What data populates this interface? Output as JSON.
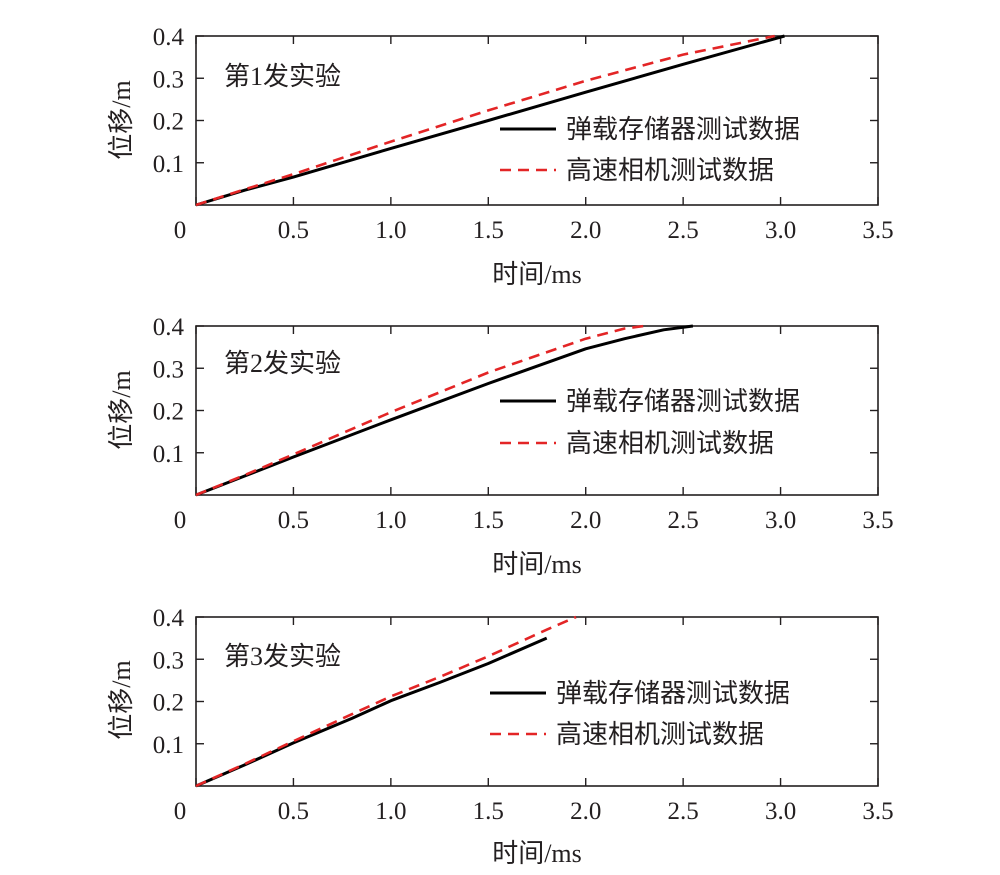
{
  "chart_data": [
    {
      "type": "line",
      "title": "第1发实验",
      "xlabel": "时间/ms",
      "ylabel": "位移/m",
      "xlim": [
        0,
        3.5
      ],
      "ylim": [
        0,
        0.4
      ],
      "xticks": [
        0,
        0.5,
        1.0,
        1.5,
        2.0,
        2.5,
        3.0,
        3.5
      ],
      "xtick_labels": [
        "0",
        "0.5",
        "1.0",
        "1.5",
        "2.0",
        "2.5",
        "3.0",
        "3.5"
      ],
      "yticks": [
        0.1,
        0.2,
        0.3,
        0.4
      ],
      "ytick_labels": [
        "0.1",
        "0.2",
        "0.3",
        "0.4"
      ],
      "grid": false,
      "legend_position": "right",
      "series": [
        {
          "name": "弹载存储器测试数据",
          "color": "#000000",
          "dash": "solid",
          "points": [
            [
              0,
              0
            ],
            [
              0.25,
              0.035
            ],
            [
              0.5,
              0.066
            ],
            [
              1.0,
              0.134
            ],
            [
              1.5,
              0.2
            ],
            [
              2.0,
              0.267
            ],
            [
              2.5,
              0.333
            ],
            [
              3.02,
              0.4
            ]
          ]
        },
        {
          "name": "高速相机测试数据",
          "color": "#e32526",
          "dash": "dashed",
          "points": [
            [
              0,
              0
            ],
            [
              0.25,
              0.037
            ],
            [
              0.5,
              0.073
            ],
            [
              1.0,
              0.15
            ],
            [
              1.5,
              0.224
            ],
            [
              2.0,
              0.294
            ],
            [
              2.5,
              0.356
            ],
            [
              2.97,
              0.4
            ]
          ]
        }
      ]
    },
    {
      "type": "line",
      "title": "第2发实验",
      "xlabel": "时间/ms",
      "ylabel": "位移/m",
      "xlim": [
        0,
        3.5
      ],
      "ylim": [
        0,
        0.4
      ],
      "xticks": [
        0,
        0.5,
        1.0,
        1.5,
        2.0,
        2.5,
        3.0,
        3.5
      ],
      "xtick_labels": [
        "0",
        "0.5",
        "1.0",
        "1.5",
        "2.0",
        "2.5",
        "3.0",
        "3.5"
      ],
      "yticks": [
        0.1,
        0.2,
        0.3,
        0.4
      ],
      "ytick_labels": [
        "0.1",
        "0.2",
        "0.3",
        "0.4"
      ],
      "grid": false,
      "legend_position": "right",
      "series": [
        {
          "name": "弹载存储器测试数据",
          "color": "#000000",
          "dash": "solid",
          "points": [
            [
              0,
              0
            ],
            [
              0.25,
              0.045
            ],
            [
              0.5,
              0.09
            ],
            [
              1.0,
              0.178
            ],
            [
              1.5,
              0.264
            ],
            [
              2.0,
              0.346
            ],
            [
              2.2,
              0.37
            ],
            [
              2.4,
              0.391
            ],
            [
              2.55,
              0.4
            ]
          ]
        },
        {
          "name": "高速相机测试数据",
          "color": "#e32526",
          "dash": "dashed",
          "points": [
            [
              0,
              0
            ],
            [
              0.25,
              0.047
            ],
            [
              0.5,
              0.096
            ],
            [
              1.0,
              0.196
            ],
            [
              1.5,
              0.29
            ],
            [
              2.0,
              0.37
            ],
            [
              2.2,
              0.394
            ],
            [
              2.3,
              0.4
            ]
          ]
        }
      ]
    },
    {
      "type": "line",
      "title": "第3发实验",
      "xlabel": "时间/ms",
      "ylabel": "位移/m",
      "xlim": [
        0,
        3.5
      ],
      "ylim": [
        0,
        0.4
      ],
      "xticks": [
        0,
        0.5,
        1.0,
        1.5,
        2.0,
        2.5,
        3.0,
        3.5
      ],
      "xtick_labels": [
        "0",
        "0.5",
        "1.0",
        "1.5",
        "2.0",
        "2.5",
        "3.0",
        "3.5"
      ],
      "yticks": [
        0.1,
        0.2,
        0.3,
        0.4
      ],
      "ytick_labels": [
        "0.1",
        "0.2",
        "0.3",
        "0.4"
      ],
      "grid": false,
      "legend_position": "right",
      "series": [
        {
          "name": "弹载存储器测试数据",
          "color": "#000000",
          "dash": "solid",
          "points": [
            [
              0,
              0
            ],
            [
              0.25,
              0.05
            ],
            [
              0.5,
              0.102
            ],
            [
              0.8,
              0.16
            ],
            [
              1.0,
              0.202
            ],
            [
              1.25,
              0.245
            ],
            [
              1.5,
              0.29
            ],
            [
              1.8,
              0.35
            ]
          ]
        },
        {
          "name": "高速相机测试数据",
          "color": "#e32526",
          "dash": "dashed",
          "points": [
            [
              0,
              0
            ],
            [
              0.25,
              0.052
            ],
            [
              0.5,
              0.106
            ],
            [
              0.8,
              0.17
            ],
            [
              1.0,
              0.212
            ],
            [
              1.25,
              0.258
            ],
            [
              1.5,
              0.307
            ],
            [
              1.8,
              0.37
            ],
            [
              1.95,
              0.4
            ]
          ]
        }
      ]
    }
  ]
}
